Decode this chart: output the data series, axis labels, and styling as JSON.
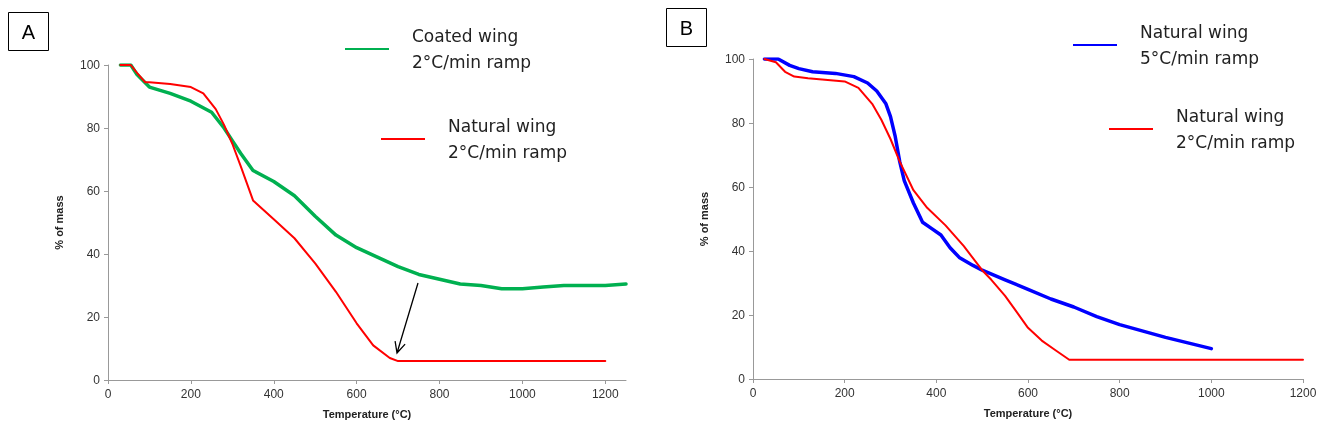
{
  "chart_data": [
    {
      "type": "line",
      "xlabel": "Temperature (°C)",
      "ylabel": "% of mass",
      "annotations": [
        "A"
      ],
      "xlim": [
        0,
        1250
      ],
      "xticks": [
        0,
        200,
        400,
        600,
        800,
        1000,
        1200
      ],
      "ylim": [
        0,
        100
      ],
      "yticks": [
        0,
        20,
        40,
        60,
        80,
        100
      ],
      "grid": false,
      "legend": "top right",
      "marker": "none",
      "line_style": "solid",
      "series": [
        {
          "name": "Coated wing\n2°C/min ramp",
          "color": "#00b050",
          "x": [
            30,
            55,
            70,
            100,
            150,
            200,
            250,
            280,
            300,
            320,
            350,
            400,
            450,
            500,
            550,
            600,
            650,
            700,
            750,
            800,
            850,
            900,
            950,
            1000,
            1050,
            1100,
            1150,
            1200,
            1250
          ],
          "values": [
            100,
            100,
            97,
            93,
            91,
            88.5,
            85,
            80,
            76,
            72,
            66.5,
            63,
            58.5,
            52,
            46,
            42,
            39,
            36,
            33.5,
            32,
            30.5,
            30,
            29,
            29,
            29.5,
            30,
            30,
            30,
            30.5
          ]
        },
        {
          "name": "Natural wing\n2°C/min ramp",
          "color": "#ff0000",
          "x": [
            30,
            55,
            70,
            90,
            100,
            150,
            200,
            230,
            260,
            280,
            300,
            320,
            350,
            400,
            450,
            500,
            550,
            600,
            640,
            680,
            700,
            750,
            800,
            1000,
            1200
          ],
          "values": [
            100,
            100,
            97.5,
            94.5,
            94.5,
            94,
            93,
            91,
            86,
            81,
            75,
            68,
            57,
            51,
            45,
            37,
            28,
            18,
            11,
            7,
            6,
            6,
            6,
            6,
            6
          ]
        }
      ]
    },
    {
      "type": "line",
      "xlabel": "Temperature (°C)",
      "ylabel": "% of mass",
      "annotations": [
        "B"
      ],
      "xlim": [
        0,
        1200
      ],
      "xticks": [
        0,
        200,
        400,
        600,
        800,
        1000,
        1200
      ],
      "ylim": [
        0,
        100
      ],
      "yticks": [
        0,
        20,
        40,
        60,
        80,
        100
      ],
      "grid": false,
      "legend": "top right",
      "marker": "none",
      "line_style": "solid",
      "series": [
        {
          "name": "Natural wing\n5°C/min ramp",
          "color": "#0000ff",
          "x": [
            25,
            35,
            55,
            80,
            100,
            130,
            180,
            220,
            250,
            270,
            290,
            300,
            310,
            320,
            330,
            350,
            370,
            390,
            410,
            430,
            450,
            480,
            500,
            550,
            600,
            650,
            700,
            750,
            800,
            900,
            1000
          ],
          "values": [
            100,
            100,
            100,
            98,
            97,
            96,
            95.5,
            94.5,
            92.5,
            90,
            86,
            82,
            76,
            68,
            62,
            55,
            49,
            47,
            45,
            41,
            38,
            35.5,
            34,
            31,
            28,
            25,
            22.5,
            19.5,
            17,
            13,
            9.5
          ]
        },
        {
          "name": "Natural wing\n2°C/min ramp",
          "color": "#ff0000",
          "x": [
            25,
            50,
            70,
            90,
            120,
            200,
            230,
            260,
            280,
            300,
            320,
            350,
            380,
            420,
            460,
            500,
            520,
            550,
            600,
            630,
            660,
            690,
            750,
            1200
          ],
          "values": [
            100,
            99,
            96,
            94.5,
            94,
            93,
            91,
            86,
            81,
            75,
            68,
            59,
            53.5,
            48,
            41.5,
            34,
            31,
            26,
            16,
            12,
            9,
            6,
            6,
            6
          ]
        }
      ]
    }
  ]
}
